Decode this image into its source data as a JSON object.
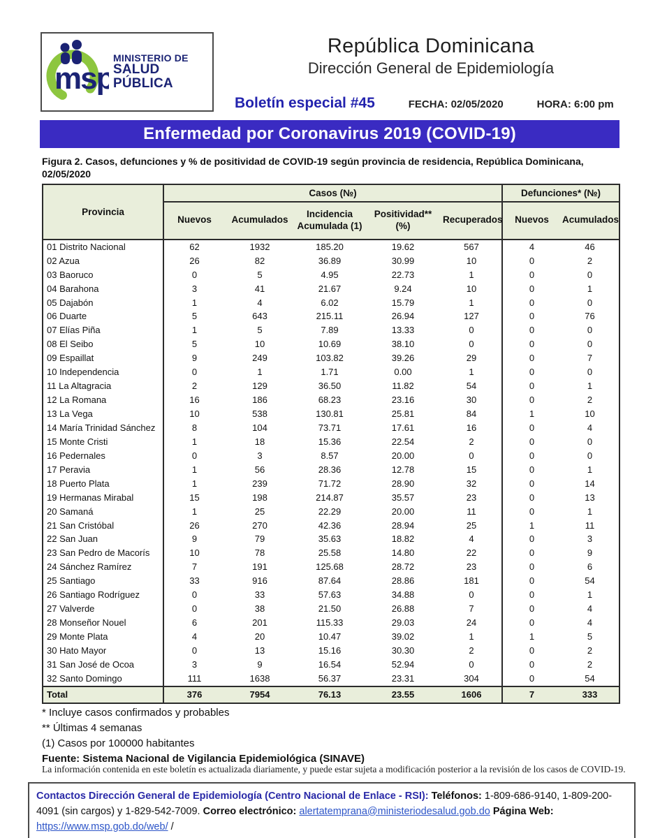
{
  "header": {
    "logo": {
      "acronym": "msp",
      "org_line1": "MINISTERIO DE",
      "org_line2": "SALUD PÚBLICA"
    },
    "country": "República Dominicana",
    "department": "Dirección General de Epidemiología",
    "bulletin": "Boletín especial #45",
    "fecha": "FECHA: 02/05/2020",
    "hora": "HORA: 6:00 pm"
  },
  "banner": {
    "title": "Enfermedad por Coronavirus 2019 (COVID-19)"
  },
  "figure": {
    "caption": "Figura 2. Casos, defunciones y % de positividad de COVID-19 según provincia de residencia, República Dominicana, 02/05/2020"
  },
  "table": {
    "group_headers": {
      "provincia": "Provincia",
      "casos": "Casos (№)",
      "defunciones": "Defunciones* (№)"
    },
    "sub_headers": [
      "Nuevos",
      "Acumulados",
      "Incidencia Acumulada (1)",
      "Positividad** (%)",
      "Recuperados",
      "Nuevos",
      "Acumulados"
    ],
    "rows": [
      [
        "01 Distrito Nacional",
        "62",
        "1932",
        "185.20",
        "19.62",
        "567",
        "4",
        "46"
      ],
      [
        "02 Azua",
        "26",
        "82",
        "36.89",
        "30.99",
        "10",
        "0",
        "2"
      ],
      [
        "03 Baoruco",
        "0",
        "5",
        "4.95",
        "22.73",
        "1",
        "0",
        "0"
      ],
      [
        "04 Barahona",
        "3",
        "41",
        "21.67",
        "9.24",
        "10",
        "0",
        "1"
      ],
      [
        "05 Dajabón",
        "1",
        "4",
        "6.02",
        "15.79",
        "1",
        "0",
        "0"
      ],
      [
        "06 Duarte",
        "5",
        "643",
        "215.11",
        "26.94",
        "127",
        "0",
        "76"
      ],
      [
        "07 Elías Piña",
        "1",
        "5",
        "7.89",
        "13.33",
        "0",
        "0",
        "0"
      ],
      [
        "08 El Seibo",
        "5",
        "10",
        "10.69",
        "38.10",
        "0",
        "0",
        "0"
      ],
      [
        "09 Espaillat",
        "9",
        "249",
        "103.82",
        "39.26",
        "29",
        "0",
        "7"
      ],
      [
        "10 Independencia",
        "0",
        "1",
        "1.71",
        "0.00",
        "1",
        "0",
        "0"
      ],
      [
        "11 La Altagracia",
        "2",
        "129",
        "36.50",
        "11.82",
        "54",
        "0",
        "1"
      ],
      [
        "12 La Romana",
        "16",
        "186",
        "68.23",
        "23.16",
        "30",
        "0",
        "2"
      ],
      [
        "13 La Vega",
        "10",
        "538",
        "130.81",
        "25.81",
        "84",
        "1",
        "10"
      ],
      [
        "14 María Trinidad Sánchez",
        "8",
        "104",
        "73.71",
        "17.61",
        "16",
        "0",
        "4"
      ],
      [
        "15 Monte Cristi",
        "1",
        "18",
        "15.36",
        "22.54",
        "2",
        "0",
        "0"
      ],
      [
        "16 Pedernales",
        "0",
        "3",
        "8.57",
        "20.00",
        "0",
        "0",
        "0"
      ],
      [
        "17 Peravia",
        "1",
        "56",
        "28.36",
        "12.78",
        "15",
        "0",
        "1"
      ],
      [
        "18 Puerto Plata",
        "1",
        "239",
        "71.72",
        "28.90",
        "32",
        "0",
        "14"
      ],
      [
        "19 Hermanas Mirabal",
        "15",
        "198",
        "214.87",
        "35.57",
        "23",
        "0",
        "13"
      ],
      [
        "20 Samaná",
        "1",
        "25",
        "22.29",
        "20.00",
        "11",
        "0",
        "1"
      ],
      [
        "21 San Cristóbal",
        "26",
        "270",
        "42.36",
        "28.94",
        "25",
        "1",
        "11"
      ],
      [
        "22 San Juan",
        "9",
        "79",
        "35.63",
        "18.82",
        "4",
        "0",
        "3"
      ],
      [
        "23 San Pedro de Macorís",
        "10",
        "78",
        "25.58",
        "14.80",
        "22",
        "0",
        "9"
      ],
      [
        "24 Sánchez Ramírez",
        "7",
        "191",
        "125.68",
        "28.72",
        "23",
        "0",
        "6"
      ],
      [
        "25 Santiago",
        "33",
        "916",
        "87.64",
        "28.86",
        "181",
        "0",
        "54"
      ],
      [
        "26 Santiago Rodríguez",
        "0",
        "33",
        "57.63",
        "34.88",
        "0",
        "0",
        "1"
      ],
      [
        "27 Valverde",
        "0",
        "38",
        "21.50",
        "26.88",
        "7",
        "0",
        "4"
      ],
      [
        "28 Monseñor Nouel",
        "6",
        "201",
        "115.33",
        "29.03",
        "24",
        "0",
        "4"
      ],
      [
        "29 Monte Plata",
        "4",
        "20",
        "10.47",
        "39.02",
        "1",
        "1",
        "5"
      ],
      [
        "30 Hato Mayor",
        "0",
        "13",
        "15.16",
        "30.30",
        "2",
        "0",
        "2"
      ],
      [
        "31 San José de Ocoa",
        "3",
        "9",
        "16.54",
        "52.94",
        "0",
        "0",
        "2"
      ],
      [
        "32 Santo Domingo",
        "111",
        "1638",
        "56.37",
        "23.31",
        "304",
        "0",
        "54"
      ]
    ],
    "total": [
      "Total",
      "376",
      "7954",
      "76.13",
      "23.55",
      "1606",
      "7",
      "333"
    ]
  },
  "footnotes": {
    "n1": "* Incluye casos confirmados y probables",
    "n2": "** Últimas 4 semanas",
    "n3": "(1) Casos por 100000 habitantes",
    "fuente": "Fuente: Sistema Nacional de Vigilancia Epidemiológica (SINAVE)",
    "disclaimer": "La información contenida en este boletín es actualizada diariamente, y puede estar sujeta a modificación posterior a la revisión de los casos de COVID-19."
  },
  "contact": {
    "heading": "Contactos Dirección General de Epidemiología (Centro Nacional de Enlace - RSI):",
    "tel_label": "Teléfonos:",
    "tel_numbers": "1-809-686-9140, 1-809-200-4091 (sin cargos) y 1-829-542-7009.",
    "email_label": "Correo electrónico:",
    "email": "alertatemprana@ministeriodesalud.gob.do",
    "web_label": "Página Web:",
    "web": "https://www.msp.gob.do/web/",
    "trailing": "/"
  },
  "colors": {
    "banner_bg": "#3a2bc2",
    "header_cell_bg": "#e9eedb",
    "logo_navy": "#1b2374",
    "logo_green": "#8dc63f",
    "accent_blue": "#2323ae",
    "link_blue": "#2d55c8"
  }
}
